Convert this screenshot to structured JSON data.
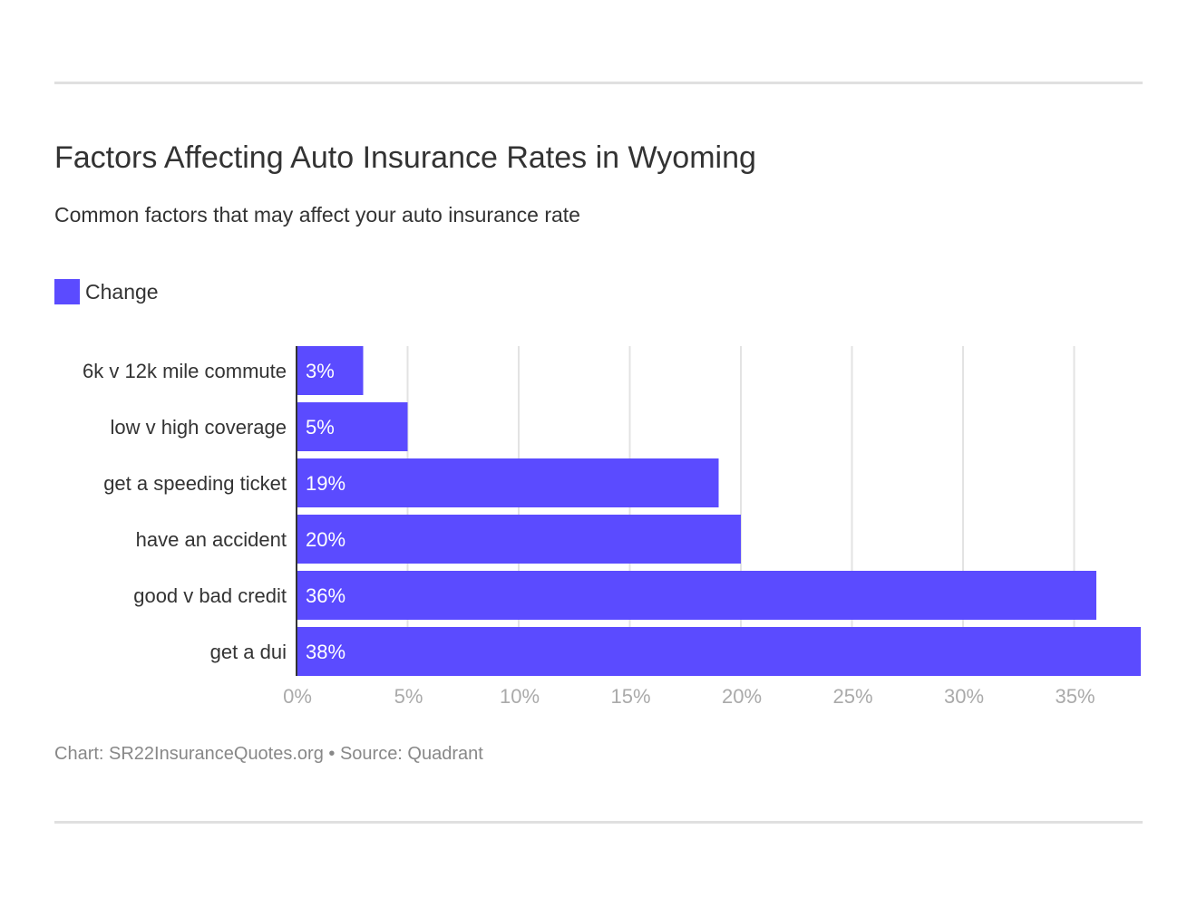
{
  "chart_data": {
    "type": "bar",
    "orientation": "horizontal",
    "title": "Factors Affecting Auto Insurance Rates in Wyoming",
    "subtitle": "Common factors that may affect your auto insurance rate",
    "categories": [
      "6k v 12k mile commute",
      "low v high coverage",
      "get a speeding ticket",
      "have an accident",
      "good v bad credit",
      "get a dui"
    ],
    "series": [
      {
        "name": "Change",
        "values": [
          3,
          5,
          19,
          20,
          36,
          38
        ],
        "color": "#5b4bff"
      }
    ],
    "data_labels": [
      "3%",
      "5%",
      "19%",
      "20%",
      "36%",
      "38%"
    ],
    "xlim": [
      0,
      38
    ],
    "xticks": [
      0,
      5,
      10,
      15,
      20,
      25,
      30,
      35
    ],
    "xtick_labels": [
      "0%",
      "5%",
      "10%",
      "15%",
      "20%",
      "25%",
      "30%",
      "35%"
    ],
    "grid": true,
    "legend": "top-left"
  },
  "footer": "Chart: SR22InsuranceQuotes.org • Source: Quadrant"
}
